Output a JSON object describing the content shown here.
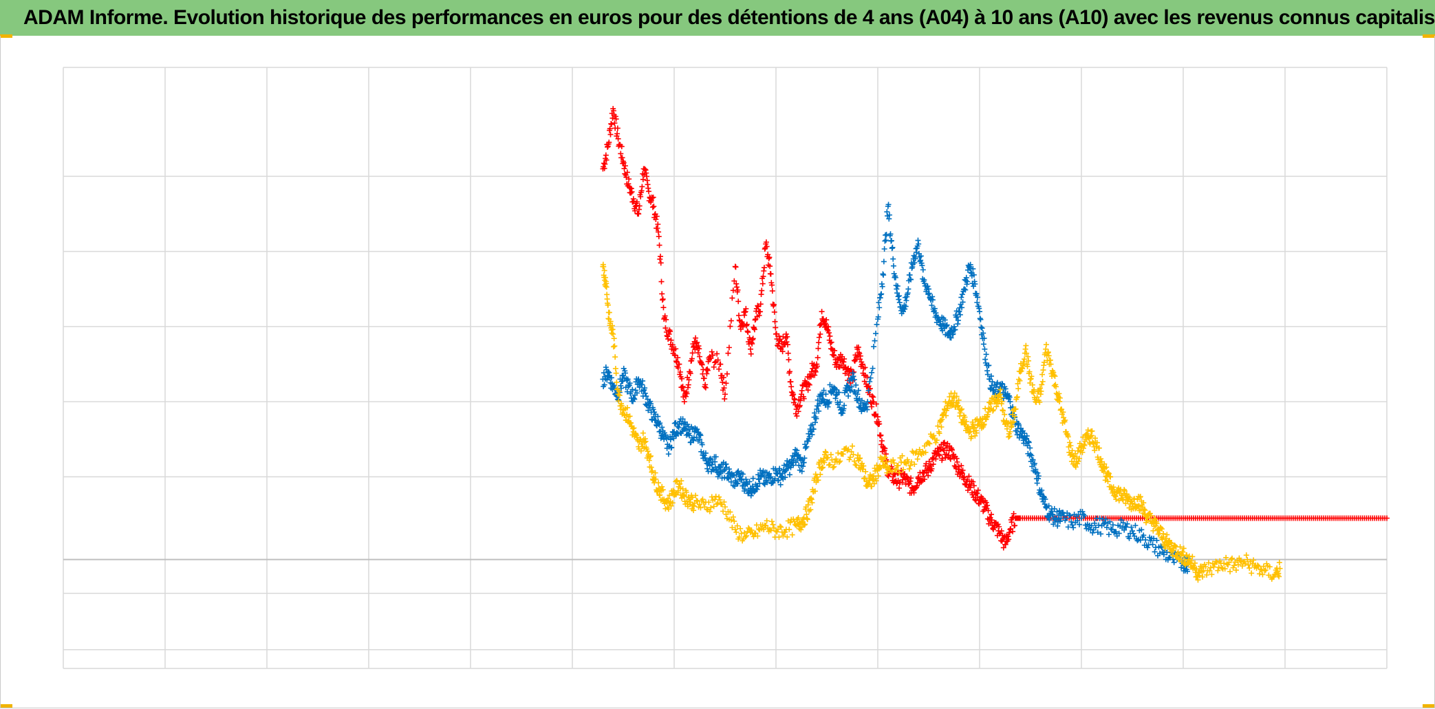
{
  "title": "ADAM Informe. Evolution historique des performances en euros pour des détentions de 4 ans (A04) à 10 ans (A10) avec les revenus connus capitalisés",
  "colors": {
    "title_background": "#86c87e",
    "corner_marker": "#f0b400",
    "gridline": "#d9d9d9",
    "zero_line": "#bfbfbf"
  },
  "chart_data": {
    "type": "scatter",
    "marker": "plus",
    "title": "ADAM Informe. Evolution historique des performances en euros pour des détentions de 4 ans (A04) à 10 ans (A10) avec les revenus connus capitalisés",
    "xlabel": "",
    "ylabel": "",
    "x_gridlines": 13,
    "y_gridlines": [
      -120,
      -45,
      0,
      110,
      210,
      310,
      410,
      510
    ],
    "grid": true,
    "xlim": [
      0,
      13
    ],
    "ylim": [
      -145,
      655
    ],
    "tick_labels_visible": false,
    "legend": "none",
    "series": [
      {
        "color": "#ff0000",
        "points": [
          [
            5.3,
            520
          ],
          [
            5.35,
            550
          ],
          [
            5.4,
            600
          ],
          [
            5.45,
            560
          ],
          [
            5.5,
            530
          ],
          [
            5.55,
            500
          ],
          [
            5.6,
            480
          ],
          [
            5.65,
            460
          ],
          [
            5.7,
            520
          ],
          [
            5.75,
            490
          ],
          [
            5.8,
            470
          ],
          [
            5.85,
            430
          ],
          [
            5.9,
            320
          ],
          [
            5.95,
            300
          ],
          [
            6.0,
            280
          ],
          [
            6.05,
            260
          ],
          [
            6.1,
            210
          ],
          [
            6.15,
            250
          ],
          [
            6.2,
            290
          ],
          [
            6.25,
            270
          ],
          [
            6.3,
            230
          ],
          [
            6.35,
            270
          ],
          [
            6.45,
            260
          ],
          [
            6.5,
            220
          ],
          [
            6.6,
            390
          ],
          [
            6.65,
            310
          ],
          [
            6.7,
            330
          ],
          [
            6.75,
            280
          ],
          [
            6.8,
            320
          ],
          [
            6.85,
            340
          ],
          [
            6.9,
            420
          ],
          [
            6.95,
            380
          ],
          [
            7.0,
            300
          ],
          [
            7.05,
            280
          ],
          [
            7.1,
            300
          ],
          [
            7.15,
            230
          ],
          [
            7.2,
            200
          ],
          [
            7.25,
            220
          ],
          [
            7.3,
            230
          ],
          [
            7.35,
            250
          ],
          [
            7.4,
            260
          ],
          [
            7.45,
            330
          ],
          [
            7.5,
            310
          ],
          [
            7.55,
            280
          ],
          [
            7.6,
            260
          ],
          [
            7.65,
            270
          ],
          [
            7.7,
            250
          ],
          [
            7.75,
            240
          ],
          [
            7.8,
            280
          ],
          [
            7.85,
            260
          ],
          [
            7.9,
            230
          ],
          [
            7.95,
            210
          ],
          [
            8.0,
            190
          ],
          [
            8.05,
            150
          ],
          [
            8.1,
            120
          ],
          [
            8.15,
            110
          ],
          [
            8.2,
            105
          ],
          [
            8.25,
            110
          ],
          [
            8.3,
            100
          ],
          [
            8.35,
            95
          ],
          [
            8.4,
            110
          ],
          [
            8.45,
            115
          ],
          [
            8.5,
            120
          ],
          [
            8.55,
            135
          ],
          [
            8.6,
            140
          ],
          [
            8.65,
            145
          ],
          [
            8.7,
            145
          ],
          [
            8.75,
            135
          ],
          [
            8.8,
            120
          ],
          [
            8.85,
            110
          ],
          [
            8.9,
            100
          ],
          [
            8.95,
            90
          ],
          [
            9.0,
            80
          ],
          [
            9.05,
            70
          ],
          [
            9.1,
            55
          ],
          [
            9.15,
            45
          ],
          [
            9.2,
            35
          ],
          [
            9.25,
            20
          ],
          [
            9.3,
            40
          ],
          [
            9.35,
            55
          ],
          [
            9.4,
            55
          ],
          [
            9.6,
            55
          ],
          [
            9.8,
            55
          ],
          [
            10.0,
            55
          ],
          [
            10.2,
            55
          ],
          [
            10.4,
            55
          ],
          [
            10.6,
            55
          ],
          [
            10.8,
            55
          ],
          [
            11.0,
            55
          ],
          [
            11.2,
            55
          ],
          [
            11.4,
            55
          ],
          [
            11.6,
            55
          ],
          [
            11.8,
            55
          ],
          [
            12.0,
            55
          ],
          [
            12.2,
            55
          ],
          [
            12.4,
            55
          ],
          [
            12.6,
            55
          ],
          [
            12.8,
            55
          ],
          [
            13.0,
            55
          ]
        ]
      },
      {
        "color": "#0070c0",
        "points": [
          [
            5.3,
            240
          ],
          [
            5.35,
            250
          ],
          [
            5.4,
            230
          ],
          [
            5.45,
            220
          ],
          [
            5.5,
            245
          ],
          [
            5.55,
            230
          ],
          [
            5.6,
            215
          ],
          [
            5.65,
            240
          ],
          [
            5.7,
            225
          ],
          [
            5.75,
            205
          ],
          [
            5.8,
            190
          ],
          [
            5.85,
            180
          ],
          [
            5.9,
            160
          ],
          [
            5.95,
            150
          ],
          [
            6.0,
            170
          ],
          [
            6.05,
            180
          ],
          [
            6.1,
            175
          ],
          [
            6.15,
            165
          ],
          [
            6.2,
            170
          ],
          [
            6.25,
            160
          ],
          [
            6.3,
            135
          ],
          [
            6.35,
            125
          ],
          [
            6.4,
            130
          ],
          [
            6.45,
            115
          ],
          [
            6.5,
            120
          ],
          [
            6.55,
            110
          ],
          [
            6.6,
            105
          ],
          [
            6.65,
            110
          ],
          [
            6.7,
            100
          ],
          [
            6.75,
            95
          ],
          [
            6.8,
            100
          ],
          [
            6.85,
            110
          ],
          [
            6.9,
            105
          ],
          [
            6.95,
            110
          ],
          [
            7.0,
            115
          ],
          [
            7.05,
            110
          ],
          [
            7.1,
            120
          ],
          [
            7.15,
            125
          ],
          [
            7.2,
            140
          ],
          [
            7.25,
            125
          ],
          [
            7.3,
            150
          ],
          [
            7.35,
            170
          ],
          [
            7.4,
            200
          ],
          [
            7.45,
            220
          ],
          [
            7.5,
            210
          ],
          [
            7.55,
            230
          ],
          [
            7.6,
            220
          ],
          [
            7.65,
            200
          ],
          [
            7.7,
            225
          ],
          [
            7.75,
            240
          ],
          [
            7.8,
            220
          ],
          [
            7.85,
            200
          ],
          [
            7.9,
            210
          ],
          [
            8.0,
            320
          ],
          [
            8.05,
            380
          ],
          [
            8.1,
            470
          ],
          [
            8.15,
            400
          ],
          [
            8.2,
            350
          ],
          [
            8.25,
            330
          ],
          [
            8.3,
            360
          ],
          [
            8.35,
            400
          ],
          [
            8.4,
            420
          ],
          [
            8.45,
            370
          ],
          [
            8.5,
            360
          ],
          [
            8.55,
            330
          ],
          [
            8.6,
            320
          ],
          [
            8.65,
            310
          ],
          [
            8.7,
            300
          ],
          [
            8.75,
            310
          ],
          [
            8.8,
            330
          ],
          [
            8.85,
            360
          ],
          [
            8.9,
            390
          ],
          [
            8.95,
            370
          ],
          [
            9.0,
            330
          ],
          [
            9.05,
            280
          ],
          [
            9.1,
            240
          ],
          [
            9.15,
            220
          ],
          [
            9.2,
            230
          ],
          [
            9.25,
            220
          ],
          [
            9.3,
            210
          ],
          [
            9.35,
            180
          ],
          [
            9.4,
            170
          ],
          [
            9.45,
            160
          ],
          [
            9.5,
            140
          ],
          [
            9.55,
            120
          ],
          [
            9.6,
            90
          ],
          [
            9.65,
            70
          ],
          [
            9.7,
            60
          ],
          [
            9.75,
            55
          ],
          [
            9.8,
            55
          ],
          [
            9.9,
            50
          ],
          [
            10.0,
            55
          ],
          [
            10.1,
            45
          ],
          [
            10.2,
            45
          ],
          [
            10.3,
            40
          ],
          [
            10.4,
            42
          ],
          [
            10.5,
            38
          ],
          [
            10.6,
            30
          ],
          [
            10.7,
            20
          ],
          [
            10.8,
            10
          ],
          [
            10.9,
            0
          ],
          [
            11.0,
            -5
          ],
          [
            11.05,
            -5
          ]
        ]
      },
      {
        "color": "#ffc000",
        "points": [
          [
            5.3,
            390
          ],
          [
            5.33,
            370
          ],
          [
            5.36,
            320
          ],
          [
            5.4,
            300
          ],
          [
            5.45,
            220
          ],
          [
            5.5,
            200
          ],
          [
            5.55,
            190
          ],
          [
            5.6,
            170
          ],
          [
            5.65,
            150
          ],
          [
            5.7,
            160
          ],
          [
            5.75,
            140
          ],
          [
            5.8,
            110
          ],
          [
            5.85,
            95
          ],
          [
            5.9,
            80
          ],
          [
            5.95,
            75
          ],
          [
            6.0,
            90
          ],
          [
            6.05,
            100
          ],
          [
            6.1,
            85
          ],
          [
            6.15,
            80
          ],
          [
            6.2,
            75
          ],
          [
            6.3,
            70
          ],
          [
            6.4,
            80
          ],
          [
            6.5,
            70
          ],
          [
            6.6,
            40
          ],
          [
            6.7,
            30
          ],
          [
            6.8,
            35
          ],
          [
            6.9,
            45
          ],
          [
            7.0,
            38
          ],
          [
            7.1,
            40
          ],
          [
            7.2,
            45
          ],
          [
            7.25,
            50
          ],
          [
            7.3,
            60
          ],
          [
            7.35,
            80
          ],
          [
            7.4,
            110
          ],
          [
            7.45,
            130
          ],
          [
            7.5,
            135
          ],
          [
            7.6,
            130
          ],
          [
            7.7,
            145
          ],
          [
            7.8,
            135
          ],
          [
            7.85,
            120
          ],
          [
            7.9,
            100
          ],
          [
            7.95,
            105
          ],
          [
            8.0,
            120
          ],
          [
            8.05,
            130
          ],
          [
            8.1,
            120
          ],
          [
            8.2,
            125
          ],
          [
            8.3,
            130
          ],
          [
            8.4,
            140
          ],
          [
            8.5,
            155
          ],
          [
            8.6,
            170
          ],
          [
            8.65,
            195
          ],
          [
            8.7,
            210
          ],
          [
            8.75,
            215
          ],
          [
            8.8,
            200
          ],
          [
            8.85,
            180
          ],
          [
            8.9,
            170
          ],
          [
            8.95,
            175
          ],
          [
            9.0,
            180
          ],
          [
            9.05,
            190
          ],
          [
            9.1,
            200
          ],
          [
            9.15,
            210
          ],
          [
            9.2,
            220
          ],
          [
            9.25,
            180
          ],
          [
            9.3,
            170
          ],
          [
            9.35,
            200
          ],
          [
            9.4,
            250
          ],
          [
            9.45,
            280
          ],
          [
            9.5,
            240
          ],
          [
            9.55,
            210
          ],
          [
            9.6,
            220
          ],
          [
            9.65,
            280
          ],
          [
            9.7,
            260
          ],
          [
            9.75,
            230
          ],
          [
            9.8,
            200
          ],
          [
            9.85,
            170
          ],
          [
            9.9,
            140
          ],
          [
            9.95,
            130
          ],
          [
            10.0,
            150
          ],
          [
            10.05,
            160
          ],
          [
            10.1,
            165
          ],
          [
            10.15,
            150
          ],
          [
            10.2,
            130
          ],
          [
            10.25,
            110
          ],
          [
            10.3,
            95
          ],
          [
            10.35,
            90
          ],
          [
            10.4,
            85
          ],
          [
            10.45,
            80
          ],
          [
            10.5,
            75
          ],
          [
            10.55,
            80
          ],
          [
            10.6,
            70
          ],
          [
            10.65,
            55
          ],
          [
            10.7,
            50
          ],
          [
            10.75,
            40
          ],
          [
            10.8,
            30
          ],
          [
            10.85,
            20
          ],
          [
            10.9,
            15
          ],
          [
            10.95,
            10
          ],
          [
            11.0,
            5
          ],
          [
            11.05,
            0
          ],
          [
            11.1,
            -8
          ],
          [
            11.15,
            -18
          ],
          [
            11.2,
            -15
          ],
          [
            11.3,
            -10
          ],
          [
            11.4,
            -5
          ],
          [
            11.5,
            -8
          ],
          [
            11.6,
            -3
          ],
          [
            11.7,
            -10
          ],
          [
            11.8,
            -15
          ],
          [
            11.9,
            -20
          ],
          [
            11.95,
            -12
          ]
        ]
      }
    ]
  }
}
